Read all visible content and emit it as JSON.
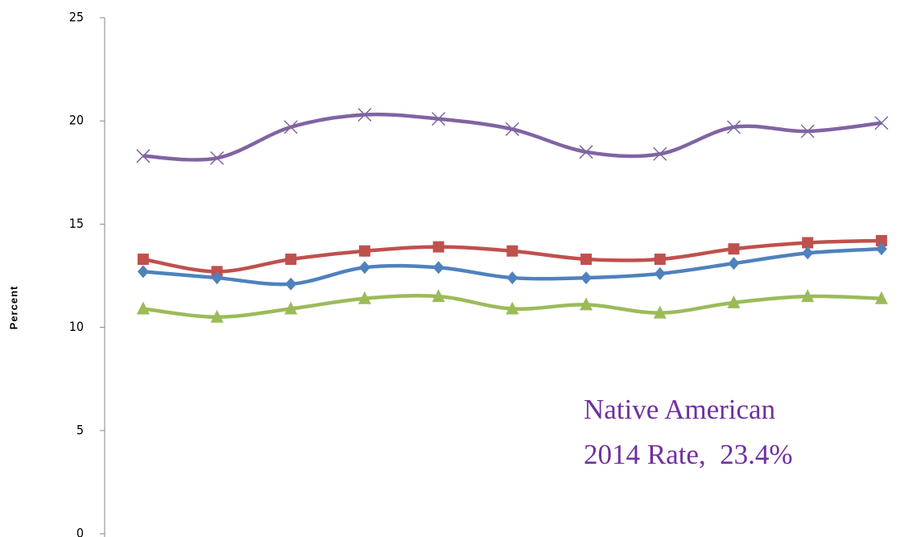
{
  "chart_data": {
    "type": "line",
    "y_label": "Percent",
    "categories": [
      null,
      null,
      null,
      null,
      null,
      null,
      null,
      null,
      null,
      null,
      null
    ],
    "series": [
      {
        "color": "#8064a2",
        "marker": "x",
        "values": [
          18.3,
          18.2,
          19.7,
          20.3,
          20.1,
          19.6,
          18.5,
          18.4,
          19.7,
          19.5,
          19.9
        ]
      },
      {
        "color": "#c0504d",
        "marker": "square",
        "values": [
          13.3,
          12.7,
          13.3,
          13.7,
          13.9,
          13.7,
          13.3,
          13.3,
          13.8,
          14.1,
          14.2
        ]
      },
      {
        "color": "#4f81bd",
        "marker": "diamond",
        "values": [
          12.7,
          12.4,
          12.1,
          12.9,
          12.9,
          12.4,
          12.4,
          12.6,
          13.1,
          13.6,
          13.8
        ]
      },
      {
        "color": "#9bbb59",
        "marker": "triangle",
        "values": [
          10.9,
          10.5,
          10.9,
          11.4,
          11.5,
          10.9,
          11.1,
          10.7,
          11.2,
          11.5,
          11.4
        ]
      }
    ],
    "ylim": [
      0,
      25
    ],
    "yticks": [
      0,
      5,
      10,
      15,
      20,
      25
    ],
    "annotations": [
      "Native American",
      "2014 Rate,  23.4%"
    ]
  }
}
